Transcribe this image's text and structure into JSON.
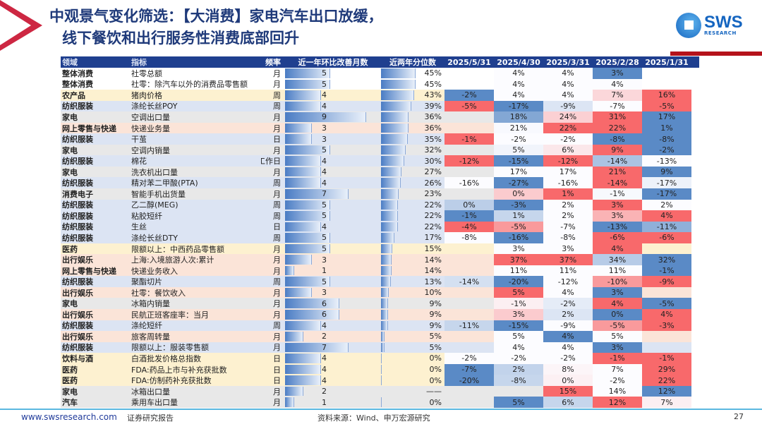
{
  "title": {
    "line1": "中观景气变化筛选：【大消费】家电汽车出口放缓，",
    "line2": "线下餐饮和出行服务性消费底部回升"
  },
  "logo": {
    "name": "SWS",
    "sub": "RESEARCH"
  },
  "table": {
    "headers": [
      "领域",
      "指标",
      "频率",
      "近一年环比改善月数",
      "近两年分位数",
      "2025/5/31",
      "2025/4/30",
      "2025/3/31",
      "2025/2/28",
      "2025/1/31"
    ],
    "category_colors": {
      "整体消费": "#ffffff",
      "农产品": "#fdf1d0",
      "纺织服装": "#dce4f3",
      "家电": "#e8e8e8",
      "网上零售与快递": "#fbe4d8",
      "消费电子": "#e8e8e8",
      "医药": "#fdf1d0",
      "出行娱乐": "#fbe4d8",
      "饮料与酒": "#fdf1d0",
      "汽车": "#e8e8e8"
    },
    "rows": [
      [
        "整体消费",
        "社零总额",
        "月",
        "5",
        "45%",
        "",
        "4%",
        "4%",
        "3%",
        ""
      ],
      [
        "整体消费",
        "社零：除汽车以外的消费品零售额",
        "月",
        "5",
        "45%",
        "",
        "4%",
        "4%",
        "4%",
        ""
      ],
      [
        "农产品",
        "猪肉价格",
        "周",
        "4",
        "43%",
        "-2%",
        "4%",
        "4%",
        "7%",
        "16%"
      ],
      [
        "纺织服装",
        "涤纶长丝POY",
        "周",
        "4",
        "39%",
        "-5%",
        "-17%",
        "-9%",
        "-7%",
        "-5%"
      ],
      [
        "家电",
        "空调出口量",
        "月",
        "9",
        "36%",
        "",
        "18%",
        "24%",
        "31%",
        "17%"
      ],
      [
        "网上零售与快递",
        "快递业务量",
        "月",
        "3",
        "36%",
        "",
        "21%",
        "22%",
        "22%",
        "1%"
      ],
      [
        "纺织服装",
        "干茧",
        "日",
        "3",
        "35%",
        "-1%",
        "-2%",
        "-2%",
        "-8%",
        "-8%"
      ],
      [
        "家电",
        "空调内销量",
        "月",
        "5",
        "32%",
        "",
        "5%",
        "6%",
        "9%",
        "-2%"
      ],
      [
        "纺织服装",
        "棉花",
        "工作日",
        "4",
        "30%",
        "-12%",
        "-15%",
        "-12%",
        "-14%",
        "-13%"
      ],
      [
        "家电",
        "洗衣机出口量",
        "月",
        "4",
        "27%",
        "",
        "17%",
        "17%",
        "21%",
        "9%"
      ],
      [
        "纺织服装",
        "精对苯二甲酸(PTA)",
        "周",
        "4",
        "26%",
        "-16%",
        "-27%",
        "-16%",
        "-14%",
        "-17%"
      ],
      [
        "消费电子",
        "智能手机出货量",
        "月",
        "7",
        "23%",
        "",
        "0%",
        "1%",
        "-1%",
        "-17%"
      ],
      [
        "纺织服装",
        "乙二醇(MEG)",
        "周",
        "5",
        "22%",
        "0%",
        "-3%",
        "2%",
        "3%",
        "2%"
      ],
      [
        "纺织服装",
        "粘胶短纤",
        "周",
        "5",
        "22%",
        "-1%",
        "1%",
        "2%",
        "3%",
        "4%"
      ],
      [
        "纺织服装",
        "生丝",
        "日",
        "4",
        "22%",
        "-4%",
        "-5%",
        "-7%",
        "-13%",
        "-11%"
      ],
      [
        "纺织服装",
        "涤纶长丝DTY",
        "周",
        "5",
        "17%",
        "-8%",
        "-16%",
        "-8%",
        "-6%",
        "-6%"
      ],
      [
        "医药",
        "限额以上：中西药品零售额",
        "月",
        "5",
        "15%",
        "",
        "3%",
        "3%",
        "4%",
        ""
      ],
      [
        "出行娱乐",
        "上海:入境旅游人次:累计",
        "月",
        "3",
        "14%",
        "",
        "37%",
        "37%",
        "34%",
        "32%"
      ],
      [
        "网上零售与快递",
        "快递业务收入",
        "月",
        "1",
        "14%",
        "",
        "11%",
        "11%",
        "11%",
        "-1%"
      ],
      [
        "纺织服装",
        "聚酯切片",
        "周",
        "5",
        "13%",
        "-14%",
        "-20%",
        "-12%",
        "-10%",
        "-9%"
      ],
      [
        "出行娱乐",
        "社零：餐饮收入",
        "月",
        "3",
        "10%",
        "",
        "5%",
        "4%",
        "3%",
        ""
      ],
      [
        "家电",
        "冰箱内销量",
        "月",
        "6",
        "9%",
        "",
        "-1%",
        "-2%",
        "4%",
        "-5%"
      ],
      [
        "出行娱乐",
        "民航正班客座率：当月",
        "月",
        "6",
        "9%",
        "",
        "3%",
        "2%",
        "0%",
        "4%"
      ],
      [
        "纺织服装",
        "涤纶短纤",
        "周",
        "4",
        "9%",
        "-11%",
        "-15%",
        "-9%",
        "-5%",
        "-3%"
      ],
      [
        "出行娱乐",
        "旅客周转量",
        "月",
        "2",
        "5%",
        "",
        "5%",
        "4%",
        "5%",
        ""
      ],
      [
        "纺织服装",
        "限额以上：服装零售额",
        "月",
        "7",
        "5%",
        "",
        "4%",
        "4%",
        "3%",
        ""
      ],
      [
        "饮料与酒",
        "白酒批发价格总指数",
        "日",
        "4",
        "0%",
        "-2%",
        "-2%",
        "-2%",
        "-1%",
        "-1%"
      ],
      [
        "医药",
        "FDA:药品上市与补充获批数",
        "日",
        "4",
        "0%",
        "-7%",
        "2%",
        "8%",
        "7%",
        "29%"
      ],
      [
        "医药",
        "FDA:仿制药补充获批数",
        "日",
        "4",
        "0%",
        "-20%",
        "-8%",
        "0%",
        "-2%",
        "22%"
      ],
      [
        "家电",
        "冰箱出口量",
        "月",
        "2",
        "——",
        "",
        "",
        "15%",
        "14%",
        "12%"
      ],
      [
        "汽车",
        "乘用车出口量",
        "月",
        "1",
        "0%",
        "",
        "5%",
        "6%",
        "12%",
        "7%"
      ]
    ]
  },
  "footer": {
    "url": "www.swsresearch.com",
    "label": "证券研究报告",
    "source": "资料来源：Wind、申万宏源研究",
    "page": "27"
  }
}
